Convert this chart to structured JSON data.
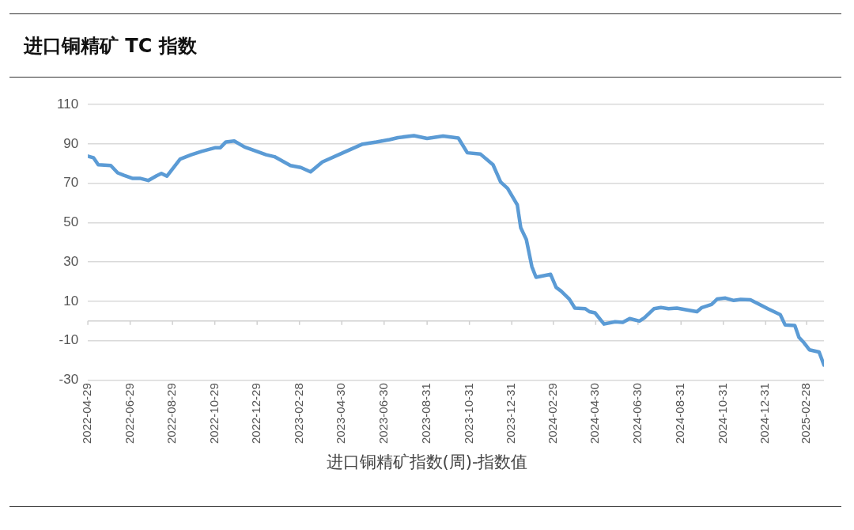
{
  "chart_data": {
    "type": "line",
    "title": "进口铜精矿 TC 指数",
    "xlabel": "进口铜精矿指数(周)-指数值",
    "series": [
      {
        "color": "#5b9bd5",
        "x": [
          "2022-04-29",
          "2022-05-07",
          "2022-05-14",
          "2022-06-01",
          "2022-06-11",
          "2022-06-20",
          "2022-07-02",
          "2022-07-13",
          "2022-07-25",
          "2022-08-06",
          "2022-08-13",
          "2022-08-21",
          "2022-09-09",
          "2022-09-25",
          "2022-10-10",
          "2022-10-30",
          "2022-11-06",
          "2022-11-14",
          "2022-11-26",
          "2022-12-11",
          "2023-01-11",
          "2023-01-23",
          "2023-02-15",
          "2023-03-02",
          "2023-03-16",
          "2023-04-02",
          "2023-05-03",
          "2023-05-30",
          "2023-06-19",
          "2023-07-08",
          "2023-07-20",
          "2023-08-12",
          "2023-08-31",
          "2023-09-23",
          "2023-10-15",
          "2023-10-28",
          "2023-11-16",
          "2023-12-04",
          "2023-12-15",
          "2023-12-25",
          "2024-01-08",
          "2024-01-13",
          "2024-01-21",
          "2024-01-29",
          "2024-02-04",
          "2024-02-25",
          "2024-03-04",
          "2024-03-11",
          "2024-03-23",
          "2024-03-31",
          "2024-04-15",
          "2024-04-21",
          "2024-04-29",
          "2024-05-12",
          "2024-05-28",
          "2024-06-08",
          "2024-06-18",
          "2024-07-02",
          "2024-07-09",
          "2024-07-23",
          "2024-08-02",
          "2024-08-13",
          "2024-08-25",
          "2024-09-05",
          "2024-09-23",
          "2024-09-30",
          "2024-10-14",
          "2024-10-22",
          "2024-11-03",
          "2024-11-15",
          "2024-11-25",
          "2024-12-09",
          "2024-12-23",
          "2025-01-03",
          "2025-01-21",
          "2025-01-28",
          "2025-02-11",
          "2025-02-17",
          "2025-02-24",
          "2025-03-04",
          "2025-03-18",
          "2025-03-25"
        ],
        "values": [
          83.8,
          83,
          79.4,
          79,
          75.3,
          74,
          72.5,
          72.5,
          71.4,
          73.8,
          75,
          73.6,
          82.3,
          84.5,
          86.2,
          88.1,
          88.1,
          91,
          91.5,
          88.4,
          84.5,
          83.5,
          79,
          78,
          75.8,
          80.8,
          85.7,
          89.9,
          91,
          92.2,
          93.2,
          94.2,
          92.8,
          94,
          93,
          85.5,
          84.8,
          79.4,
          70.6,
          67.4,
          59,
          47.3,
          41.4,
          27.6,
          22.2,
          23.7,
          17,
          15.2,
          11.1,
          6.5,
          6.2,
          4.7,
          4.1,
          -1.6,
          -0.4,
          -0.7,
          1.2,
          -0.1,
          1.5,
          6.2,
          6.8,
          6.2,
          6.5,
          5.8,
          4.7,
          6.8,
          8.4,
          11.1,
          11.6,
          10.4,
          10.9,
          10.7,
          8.2,
          6.2,
          3.2,
          -2,
          -2.3,
          -8.4,
          -11,
          -14.7,
          -15.8,
          -22.4
        ]
      }
    ],
    "xlim": [
      "2022-04-29",
      "2025-03-25"
    ],
    "xticks": [
      "2022-04-29",
      "2022-06-29",
      "2022-08-29",
      "2022-10-29",
      "2022-12-29",
      "2023-02-28",
      "2023-04-30",
      "2023-06-30",
      "2023-08-31",
      "2023-10-31",
      "2023-12-31",
      "2024-02-29",
      "2024-04-30",
      "2024-06-30",
      "2024-08-31",
      "2024-10-31",
      "2024-12-31",
      "2025-02-28"
    ],
    "ylim": [
      -30,
      110
    ],
    "yticks": [
      -30,
      -10,
      10,
      30,
      50,
      70,
      90,
      110
    ],
    "grid": "y",
    "marker": "none",
    "line_style": "solid"
  }
}
